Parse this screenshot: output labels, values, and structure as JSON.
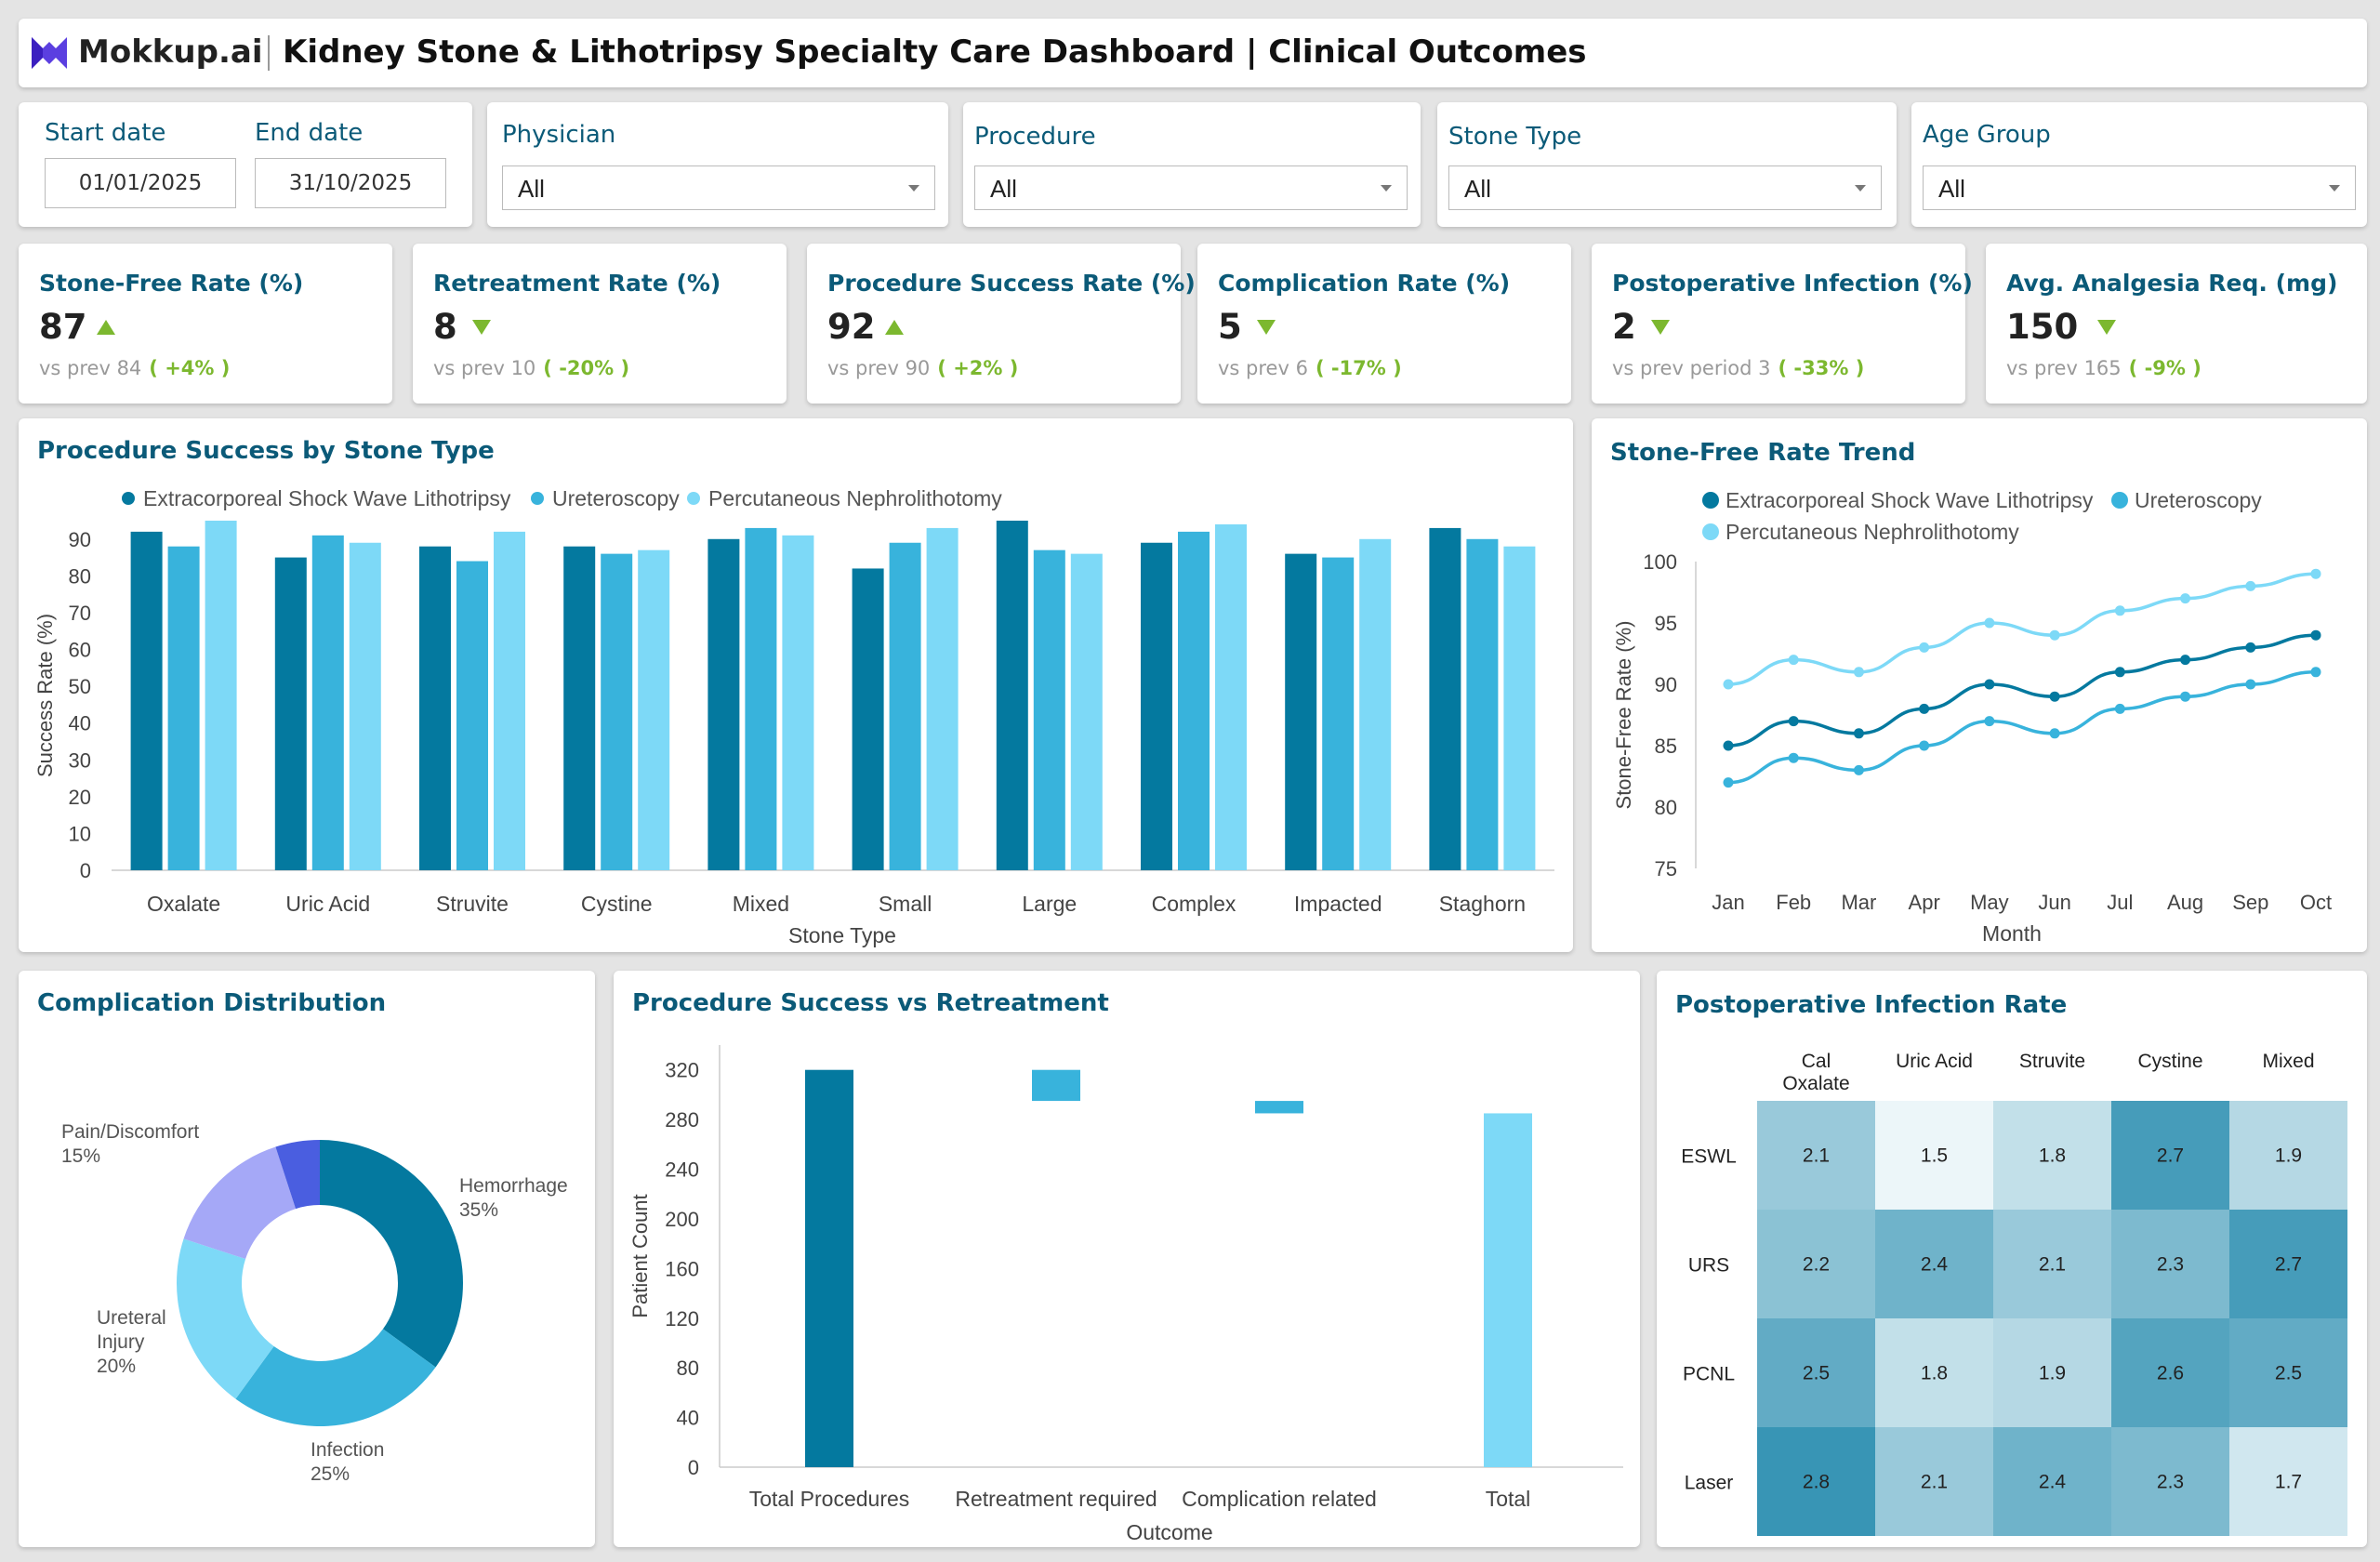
{
  "header": {
    "brand": "Mokkup.ai",
    "title": "Kidney Stone & Lithotripsy Specialty Care Dashboard | Clinical Outcomes"
  },
  "filters": {
    "start_date_label": "Start date",
    "start_date": "01/01/2025",
    "end_date_label": "End date",
    "end_date": "31/10/2025",
    "physician_label": "Physician",
    "physician_value": "All",
    "procedure_label": "Procedure",
    "procedure_value": "All",
    "stone_type_label": "Stone Type",
    "stone_type_value": "All",
    "age_group_label": "Age Group",
    "age_group_value": "All"
  },
  "kpis": [
    {
      "title": "Stone-Free Rate (%)",
      "value": "87",
      "trend": "up",
      "prev": "vs prev 84",
      "change": "( +4% )"
    },
    {
      "title": "Retreatment Rate (%)",
      "value": "8",
      "trend": "down",
      "prev": "vs prev 10",
      "change": "( -20% )"
    },
    {
      "title": "Procedure Success Rate (%)",
      "value": "92",
      "trend": "up",
      "prev": "vs prev 90",
      "change": "( +2% )"
    },
    {
      "title": "Complication Rate (%)",
      "value": "5",
      "trend": "down",
      "prev": "vs prev 6",
      "change": "( -17% )"
    },
    {
      "title": "Postoperative Infection (%)",
      "value": "2",
      "trend": "down",
      "prev": "vs prev period 3",
      "change": "( -33% )"
    },
    {
      "title": "Avg. Analgesia Req. (mg)",
      "value": "150",
      "trend": "down",
      "prev": "vs prev 165",
      "change": "( -9% )"
    }
  ],
  "colors": {
    "series1": "#04799f",
    "series2": "#38b3dc",
    "series3": "#7dd9f7",
    "kpi_good": "#7cb82f",
    "title": "#0b5a78"
  },
  "chart_data": [
    {
      "type": "bar",
      "title": "Procedure Success by Stone Type",
      "xlabel": "Stone Type",
      "ylabel": "Success Rate (%)",
      "ylim": [
        0,
        95
      ],
      "yticks": [
        0,
        10,
        20,
        30,
        40,
        50,
        60,
        70,
        80,
        90
      ],
      "legend": "top",
      "categories": [
        "Oxalate",
        "Uric Acid",
        "Struvite",
        "Cystine",
        "Mixed",
        "Small",
        "Large",
        "Complex",
        "Impacted",
        "Staghorn"
      ],
      "series": [
        {
          "name": "Extracorporeal Shock Wave Lithotripsy",
          "values": [
            92,
            85,
            88,
            88,
            90,
            82,
            95,
            89,
            86,
            93
          ]
        },
        {
          "name": "Ureteroscopy",
          "values": [
            88,
            91,
            84,
            86,
            93,
            89,
            87,
            92,
            85,
            90
          ]
        },
        {
          "name": "Percutaneous Nephrolithotomy",
          "values": [
            95,
            89,
            92,
            87,
            91,
            93,
            86,
            94,
            90,
            88
          ]
        }
      ]
    },
    {
      "type": "line",
      "title": "Stone-Free Rate Trend",
      "xlabel": "Month",
      "ylabel": "Stone-Free Rate (%)",
      "ylim": [
        75,
        100
      ],
      "yticks": [
        75,
        80,
        85,
        90,
        95,
        100
      ],
      "legend": "top",
      "categories": [
        "Jan",
        "Feb",
        "Mar",
        "Apr",
        "May",
        "Jun",
        "Jul",
        "Aug",
        "Sep",
        "Oct"
      ],
      "series": [
        {
          "name": "Extracorporeal Shock Wave Lithotripsy",
          "values": [
            85,
            87,
            86,
            88,
            90,
            89,
            91,
            92,
            93,
            94
          ]
        },
        {
          "name": "Ureteroscopy",
          "values": [
            82,
            84,
            83,
            85,
            87,
            86,
            88,
            89,
            90,
            91
          ]
        },
        {
          "name": "Percutaneous Nephrolithotomy",
          "values": [
            90,
            92,
            91,
            93,
            95,
            94,
            96,
            97,
            98,
            99
          ]
        }
      ]
    },
    {
      "type": "pie",
      "title": "Complication Distribution",
      "slices": [
        {
          "label": "Hemorrhage",
          "pct": "35%",
          "value": 35,
          "color": "#04799f"
        },
        {
          "label": "Infection",
          "pct": "25%",
          "value": 25,
          "color": "#38b3dc"
        },
        {
          "label": "Ureteral Injury",
          "pct": "20%",
          "value": 20,
          "color": "#7dd9f7"
        },
        {
          "label": "Pain/Discomfort",
          "pct": "15%",
          "value": 15,
          "color": "#a5a8f7"
        },
        {
          "label": "",
          "pct": "",
          "value": 5,
          "color": "#4a5ee0"
        }
      ]
    },
    {
      "type": "bar",
      "title": "Procedure Success vs Retreatment",
      "xlabel": "Outcome",
      "ylabel": "Patient Count",
      "ylim": [
        0,
        340
      ],
      "yticks": [
        0,
        40,
        80,
        120,
        160,
        200,
        240,
        280,
        320
      ],
      "categories": [
        "Total Procedures",
        "Retreatment required",
        "Complication related",
        "Total"
      ],
      "bars": [
        {
          "base": 0,
          "top": 320,
          "color": "#04799f"
        },
        {
          "base": 295,
          "top": 320,
          "color": "#38b3dc"
        },
        {
          "base": 285,
          "top": 295,
          "color": "#38b3dc"
        },
        {
          "base": 0,
          "top": 285,
          "color": "#7dd9f7"
        }
      ]
    },
    {
      "type": "heatmap",
      "title": "Postoperative Infection Rate",
      "columns": [
        "Cal Oxalate",
        "Uric Acid",
        "Struvite",
        "Cystine",
        "Mixed"
      ],
      "rows": [
        "ESWL",
        "URS",
        "PCNL",
        "Laser"
      ],
      "values": [
        [
          2.1,
          1.5,
          1.8,
          2.7,
          1.9
        ],
        [
          2.2,
          2.4,
          2.1,
          2.3,
          2.7
        ],
        [
          2.5,
          1.8,
          1.9,
          2.6,
          2.5
        ],
        [
          2.8,
          2.1,
          2.4,
          2.3,
          1.7
        ]
      ]
    }
  ]
}
